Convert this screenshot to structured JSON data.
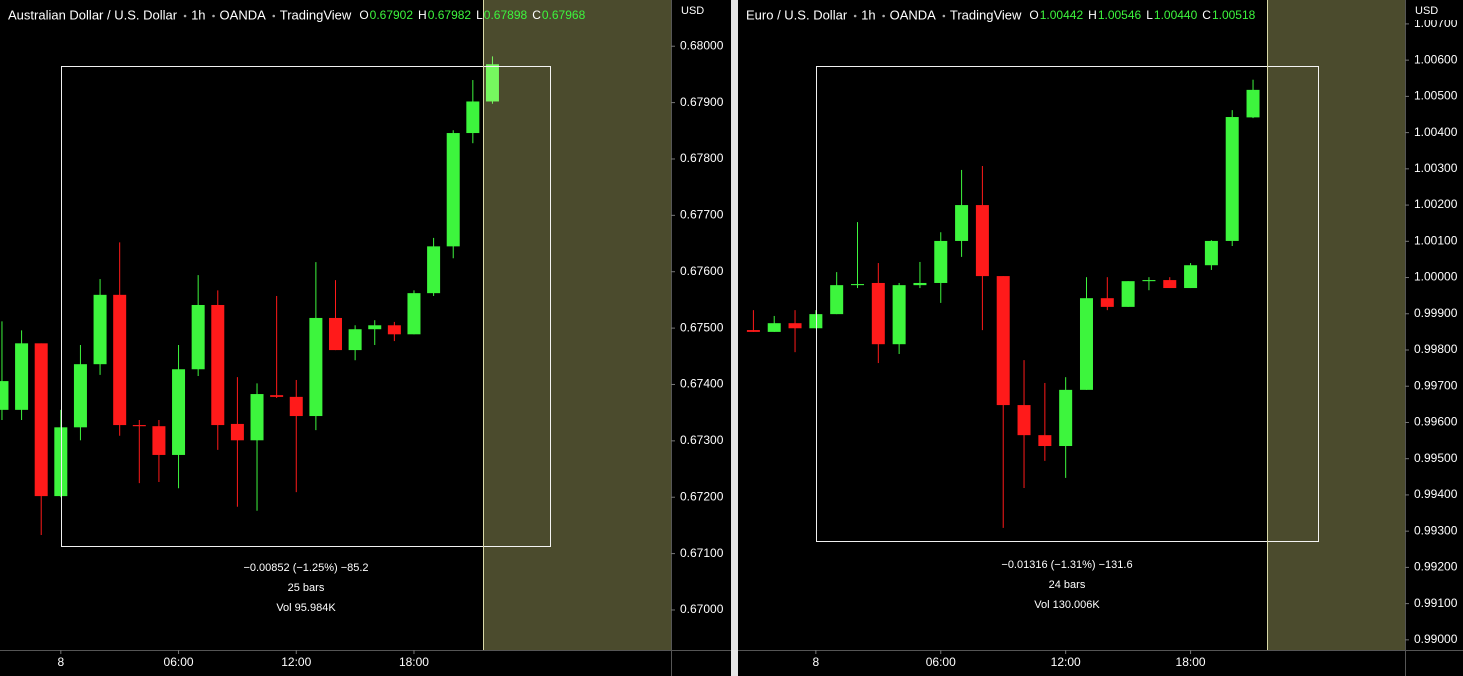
{
  "chart_data": [
    {
      "type": "candlestick",
      "symbol": "Australian Dollar / U.S. Dollar",
      "interval": "1h",
      "exchange": "OANDA",
      "source": "TradingView",
      "ohlc_keys": [
        "O",
        "H",
        "L",
        "C"
      ],
      "ohlc_labels": [
        "0.67902",
        "0.67982",
        "0.67898",
        "0.67968"
      ],
      "currency": "USD",
      "x": [
        -3,
        -2,
        -1,
        0,
        1,
        2,
        3,
        4,
        5,
        6,
        7,
        8,
        9,
        10,
        11,
        12,
        13,
        14,
        15,
        16,
        17,
        18,
        19,
        20,
        21,
        22
      ],
      "open": [
        0.67355,
        0.67355,
        0.67473,
        0.67202,
        0.67324,
        0.67436,
        0.67559,
        0.67328,
        0.67326,
        0.67275,
        0.67427,
        0.67541,
        0.6733,
        0.67301,
        0.67381,
        0.67378,
        0.67344,
        0.67518,
        0.67461,
        0.67498,
        0.67505,
        0.67489,
        0.67562,
        0.67645,
        0.67846,
        0.67902
      ],
      "high": [
        0.67512,
        0.67496,
        0.67473,
        0.67355,
        0.6747,
        0.67587,
        0.67652,
        0.67337,
        0.67337,
        0.6747,
        0.67594,
        0.67567,
        0.67413,
        0.67402,
        0.67557,
        0.67408,
        0.67617,
        0.67585,
        0.67505,
        0.67514,
        0.67511,
        0.67567,
        0.6766,
        0.67851,
        0.6794,
        0.67982
      ],
      "low": [
        0.67337,
        0.67337,
        0.67133,
        0.672,
        0.67301,
        0.67417,
        0.67309,
        0.67225,
        0.67227,
        0.67216,
        0.67415,
        0.67284,
        0.67183,
        0.67176,
        0.67376,
        0.67209,
        0.67319,
        0.67461,
        0.67443,
        0.6747,
        0.67477,
        0.67489,
        0.67557,
        0.67624,
        0.67828,
        0.67898
      ],
      "close": [
        0.67406,
        0.67473,
        0.67202,
        0.67324,
        0.67436,
        0.67559,
        0.67328,
        0.67326,
        0.67275,
        0.67427,
        0.67541,
        0.67328,
        0.67301,
        0.67383,
        0.67378,
        0.67344,
        0.67518,
        0.67461,
        0.67498,
        0.67505,
        0.67489,
        0.67562,
        0.67645,
        0.67846,
        0.67902,
        0.67968
      ],
      "xlim": [
        -3.1,
        31.1
      ],
      "xticks": [
        {
          "value": 0,
          "label": "8"
        },
        {
          "value": 6,
          "label": "06:00"
        },
        {
          "value": 12,
          "label": "12:00"
        },
        {
          "value": 18,
          "label": "18:00"
        }
      ],
      "ylim": [
        0.66929,
        0.68082
      ],
      "yticks": [
        {
          "value": 0.68,
          "label": "0.68000"
        },
        {
          "value": 0.679,
          "label": "0.67900"
        },
        {
          "value": 0.678,
          "label": "0.67800"
        },
        {
          "value": 0.677,
          "label": "0.67700"
        },
        {
          "value": 0.676,
          "label": "0.67600"
        },
        {
          "value": 0.675,
          "label": "0.67500"
        },
        {
          "value": 0.674,
          "label": "0.67400"
        },
        {
          "value": 0.673,
          "label": "0.67300"
        },
        {
          "value": 0.672,
          "label": "0.67200"
        },
        {
          "value": 0.671,
          "label": "0.67100"
        },
        {
          "value": 0.67,
          "label": "0.67000"
        }
      ],
      "up_color": "#3df53d",
      "down_color": "#ff1a1a",
      "measure": [
        "−0.00852 (−1.25%) −85.2",
        "25 bars",
        "Vol 95.984K"
      ]
    },
    {
      "type": "candlestick",
      "symbol": "Euro / U.S. Dollar",
      "interval": "1h",
      "exchange": "OANDA",
      "source": "TradingView",
      "ohlc_keys": [
        "O",
        "H",
        "L",
        "C"
      ],
      "ohlc_labels": [
        "1.00442",
        "1.00546",
        "1.00440",
        "1.00518"
      ],
      "currency": "USD",
      "x": [
        -3,
        -2,
        -1,
        0,
        1,
        2,
        3,
        4,
        5,
        6,
        7,
        8,
        9,
        10,
        11,
        12,
        13,
        14,
        15,
        16,
        17,
        18,
        19,
        20,
        21
      ],
      "open": [
        0.99855,
        0.9985,
        0.99874,
        0.9986,
        0.99899,
        0.99979,
        0.99985,
        0.99816,
        0.99979,
        0.99985,
        1.00101,
        1.002,
        1.00004,
        0.99648,
        0.99565,
        0.99535,
        0.9969,
        0.99943,
        0.99919,
        0.9999,
        0.99993,
        0.99971,
        1.00034,
        1.00101,
        1.00442
      ],
      "high": [
        0.9991,
        0.99894,
        0.9991,
        0.9991,
        1.00015,
        1.00153,
        1.0004,
        0.99985,
        1.00043,
        1.00125,
        1.00297,
        1.00308,
        1.00004,
        0.99772,
        0.99709,
        0.99725,
        1.00001,
        1.00001,
        0.9999,
        1.00001,
        1.00001,
        1.0004,
        1.00103,
        1.00462,
        1.00546
      ],
      "low": [
        0.9985,
        0.9985,
        0.99794,
        0.9986,
        0.99899,
        0.99971,
        0.99764,
        0.99789,
        0.99971,
        0.9993,
        1.00057,
        0.99855,
        0.99309,
        0.99419,
        0.99494,
        0.99447,
        0.9969,
        0.9991,
        0.99919,
        0.99965,
        0.99971,
        0.99971,
        1.00021,
        1.00087,
        1.0044
      ],
      "close": [
        0.9985,
        0.99874,
        0.9986,
        0.99899,
        0.99979,
        0.99982,
        0.99816,
        0.99979,
        0.99985,
        1.00101,
        1.002,
        1.00004,
        0.99648,
        0.99565,
        0.99535,
        0.9969,
        0.99943,
        0.99919,
        0.9999,
        0.99993,
        0.99971,
        1.00034,
        1.00101,
        1.00443,
        1.00518
      ],
      "xlim": [
        -3.74,
        28.3
      ],
      "xticks": [
        {
          "value": 0,
          "label": "8"
        },
        {
          "value": 6,
          "label": "06:00"
        },
        {
          "value": 12,
          "label": "12:00"
        },
        {
          "value": 18,
          "label": "18:00"
        }
      ],
      "ylim": [
        0.98972,
        1.00766
      ],
      "yticks": [
        {
          "value": 1.007,
          "label": "1.00700"
        },
        {
          "value": 1.006,
          "label": "1.00600"
        },
        {
          "value": 1.005,
          "label": "1.00500"
        },
        {
          "value": 1.004,
          "label": "1.00400"
        },
        {
          "value": 1.003,
          "label": "1.00300"
        },
        {
          "value": 1.002,
          "label": "1.00200"
        },
        {
          "value": 1.001,
          "label": "1.00100"
        },
        {
          "value": 1.0,
          "label": "1.00000"
        },
        {
          "value": 0.999,
          "label": "0.99900"
        },
        {
          "value": 0.998,
          "label": "0.99800"
        },
        {
          "value": 0.997,
          "label": "0.99700"
        },
        {
          "value": 0.996,
          "label": "0.99600"
        },
        {
          "value": 0.995,
          "label": "0.99500"
        },
        {
          "value": 0.994,
          "label": "0.99400"
        },
        {
          "value": 0.993,
          "label": "0.99300"
        },
        {
          "value": 0.992,
          "label": "0.99200"
        },
        {
          "value": 0.991,
          "label": "0.99100"
        },
        {
          "value": 0.99,
          "label": "0.99000"
        }
      ],
      "up_color": "#3df53d",
      "down_color": "#ff1a1a",
      "measure": [
        "−0.01316 (−1.31%) −131.6",
        "24 bars",
        "Vol 130.006K"
      ]
    }
  ]
}
